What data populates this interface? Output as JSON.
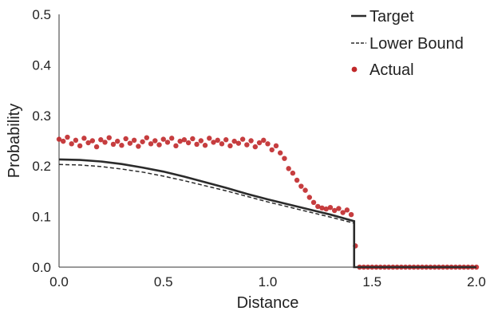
{
  "chart_data": {
    "type": "line",
    "title": "",
    "xlabel": "Distance",
    "ylabel": "Probability",
    "xlim": [
      0.0,
      2.0
    ],
    "ylim": [
      0.0,
      0.5
    ],
    "x_ticks": [
      "0.0",
      "0.5",
      "1.0",
      "1.5",
      "2.0"
    ],
    "y_ticks": [
      "0.0",
      "0.1",
      "0.2",
      "0.3",
      "0.4",
      "0.5"
    ],
    "grid": false,
    "legend_position": "top-right",
    "colors": {
      "target": "#2b2b2b",
      "lower": "#2b2b2b",
      "actual": "#c0282a"
    },
    "series": [
      {
        "name": "Target",
        "style": "solid",
        "x": [
          0.0,
          0.1,
          0.2,
          0.3,
          0.4,
          0.5,
          0.6,
          0.7,
          0.8,
          0.9,
          1.0,
          1.1,
          1.2,
          1.3,
          1.414,
          1.414,
          1.5,
          2.0
        ],
        "y": [
          0.213,
          0.212,
          0.209,
          0.204,
          0.197,
          0.189,
          0.179,
          0.168,
          0.157,
          0.145,
          0.134,
          0.124,
          0.114,
          0.104,
          0.091,
          0.0,
          0.0,
          0.0
        ]
      },
      {
        "name": "Lower Bound",
        "style": "dashed",
        "x": [
          0.0,
          0.1,
          0.2,
          0.3,
          0.4,
          0.5,
          0.6,
          0.7,
          0.8,
          0.9,
          1.0,
          1.1,
          1.2,
          1.3,
          1.414,
          1.414,
          1.5,
          2.0
        ],
        "y": [
          0.203,
          0.202,
          0.199,
          0.194,
          0.188,
          0.18,
          0.171,
          0.161,
          0.151,
          0.14,
          0.129,
          0.119,
          0.109,
          0.099,
          0.087,
          0.0,
          0.0,
          0.0
        ]
      },
      {
        "name": "Actual",
        "style": "scatter",
        "x": [
          0.0,
          0.02,
          0.04,
          0.06,
          0.08,
          0.1,
          0.12,
          0.14,
          0.16,
          0.18,
          0.2,
          0.22,
          0.24,
          0.26,
          0.28,
          0.3,
          0.32,
          0.34,
          0.36,
          0.38,
          0.4,
          0.42,
          0.44,
          0.46,
          0.48,
          0.5,
          0.52,
          0.54,
          0.56,
          0.58,
          0.6,
          0.62,
          0.64,
          0.66,
          0.68,
          0.7,
          0.72,
          0.74,
          0.76,
          0.78,
          0.8,
          0.82,
          0.84,
          0.86,
          0.88,
          0.9,
          0.92,
          0.94,
          0.96,
          0.98,
          1.0,
          1.02,
          1.04,
          1.06,
          1.08,
          1.1,
          1.12,
          1.14,
          1.16,
          1.18,
          1.2,
          1.22,
          1.24,
          1.26,
          1.28,
          1.3,
          1.32,
          1.34,
          1.36,
          1.38,
          1.4,
          1.42,
          1.44,
          1.46,
          1.48,
          1.5,
          1.52,
          1.54,
          1.56,
          1.58,
          1.6,
          1.62,
          1.64,
          1.66,
          1.68,
          1.7,
          1.72,
          1.74,
          1.76,
          1.78,
          1.8,
          1.82,
          1.84,
          1.86,
          1.88,
          1.9,
          1.92,
          1.94,
          1.96,
          1.98,
          2.0
        ],
        "y": [
          0.253,
          0.249,
          0.257,
          0.244,
          0.251,
          0.24,
          0.255,
          0.246,
          0.25,
          0.238,
          0.252,
          0.247,
          0.256,
          0.243,
          0.249,
          0.241,
          0.254,
          0.245,
          0.251,
          0.239,
          0.248,
          0.256,
          0.244,
          0.25,
          0.242,
          0.253,
          0.247,
          0.255,
          0.24,
          0.249,
          0.252,
          0.246,
          0.254,
          0.243,
          0.25,
          0.241,
          0.255,
          0.247,
          0.251,
          0.244,
          0.252,
          0.24,
          0.249,
          0.245,
          0.253,
          0.242,
          0.25,
          0.238,
          0.246,
          0.251,
          0.244,
          0.232,
          0.24,
          0.226,
          0.215,
          0.195,
          0.186,
          0.172,
          0.16,
          0.152,
          0.138,
          0.128,
          0.12,
          0.117,
          0.115,
          0.118,
          0.112,
          0.116,
          0.108,
          0.113,
          0.104,
          0.042,
          0.0,
          0.0,
          0.0,
          0.0,
          0.0,
          0.0,
          0.0,
          0.0,
          0.0,
          0.0,
          0.0,
          0.0,
          0.0,
          0.0,
          0.0,
          0.0,
          0.0,
          0.0,
          0.0,
          0.0,
          0.0,
          0.0,
          0.0,
          0.0,
          0.0,
          0.0,
          0.0,
          0.0,
          0.0
        ]
      }
    ]
  }
}
